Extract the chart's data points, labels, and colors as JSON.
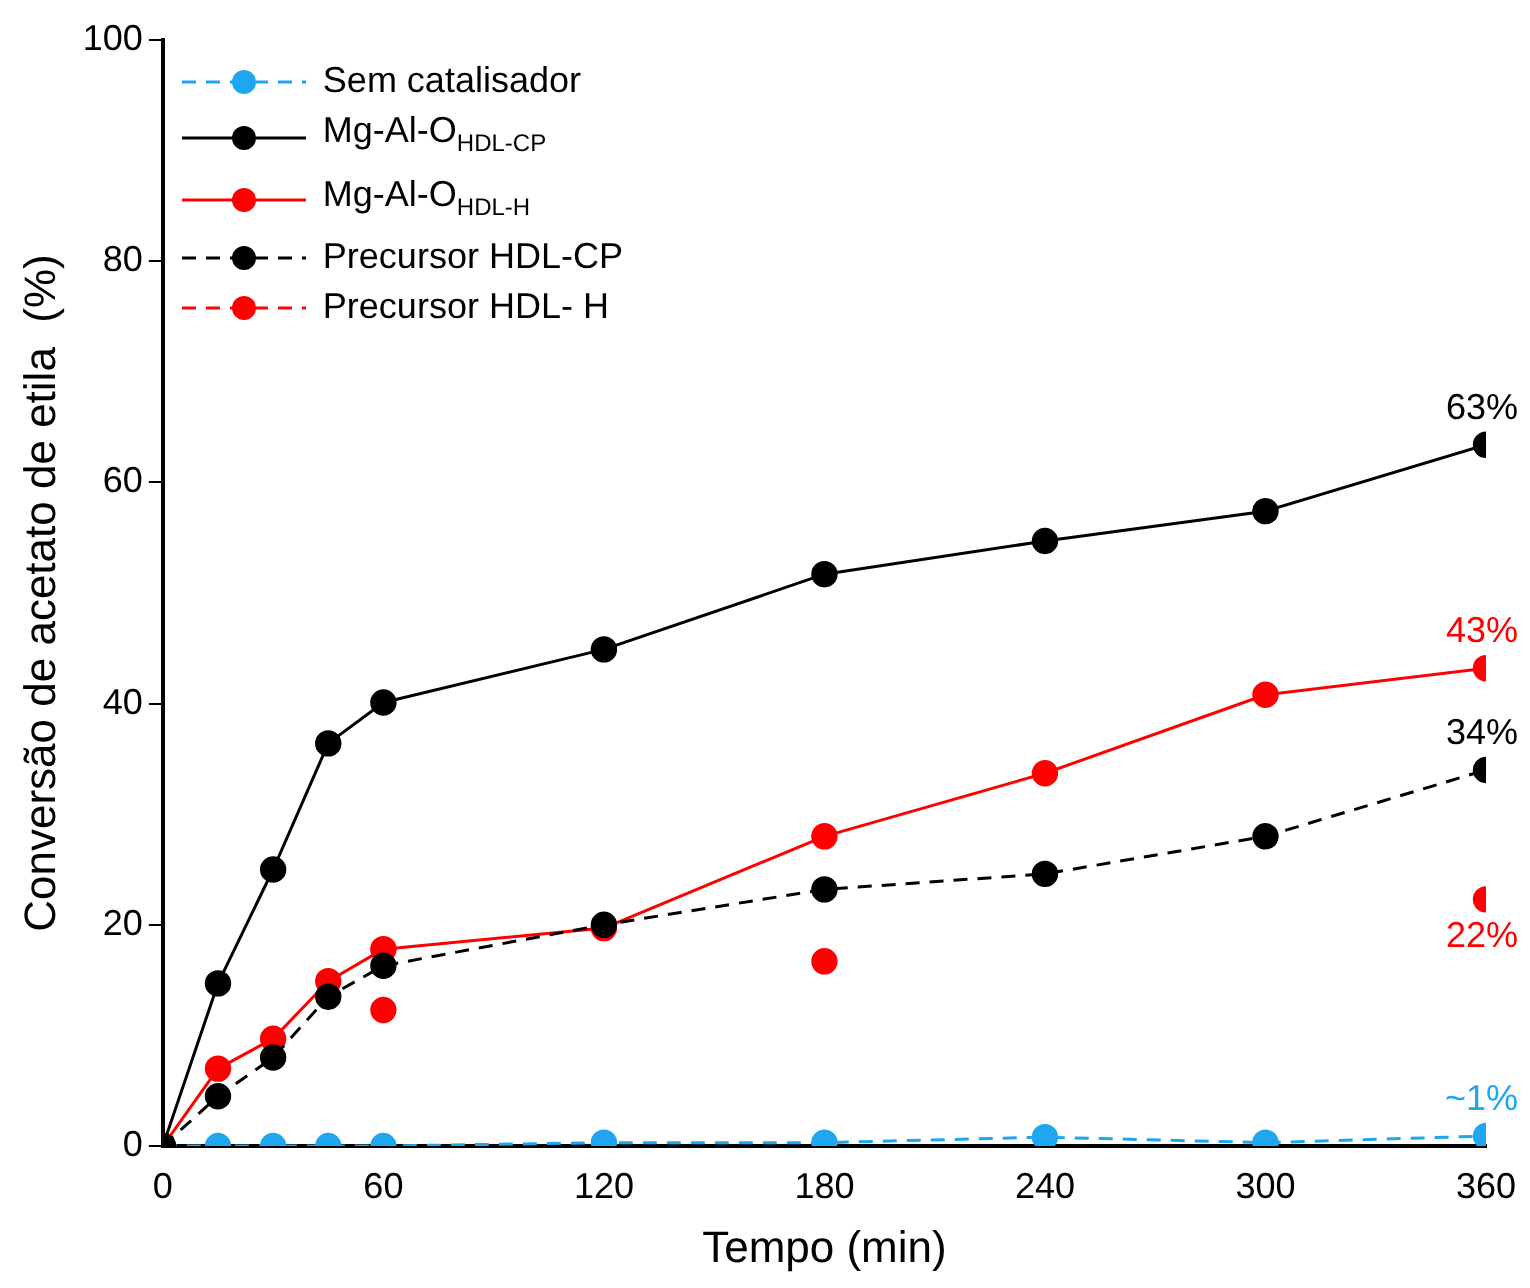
{
  "chart_data": {
    "type": "line",
    "xlabel": "Tempo (min)",
    "ylabel": "Conversão de acetato de etila  (%)",
    "xlim": [
      0,
      360
    ],
    "xticks": [
      0,
      60,
      120,
      180,
      240,
      300,
      360
    ],
    "ylim": [
      0,
      100
    ],
    "yticks": [
      0,
      20,
      40,
      60,
      80,
      100
    ],
    "grid": false,
    "legend": "top left",
    "marker": "circle",
    "series": [
      {
        "name": "Sem catalisador",
        "color": "#1ea7f0",
        "line_style": "dashed",
        "x": [
          0,
          15,
          30,
          45,
          60,
          120,
          180,
          240,
          300,
          360
        ],
        "values": [
          0,
          0,
          0,
          0,
          0,
          0.3,
          0.3,
          0.8,
          0.3,
          0.9
        ],
        "value_labels": [
          null,
          null,
          null,
          null,
          null,
          null,
          null,
          null,
          null,
          "~1%"
        ]
      },
      {
        "name": "Mg-Al-O$_{HDL-CP}$",
        "color": "#000000",
        "line_style": "solid",
        "x": [
          0,
          15,
          30,
          45,
          60,
          120,
          180,
          240,
          300,
          360
        ],
        "values": [
          0,
          14.7,
          25.0,
          36.4,
          40.1,
          44.9,
          51.7,
          54.7,
          57.4,
          63.4
        ],
        "value_labels": [
          null,
          null,
          null,
          null,
          null,
          null,
          null,
          null,
          null,
          "63%"
        ]
      },
      {
        "name": "Mg-Al-O$_{HDL-H}$",
        "color": "#ff0000",
        "line_style": "solid",
        "x": [
          0,
          15,
          30,
          45,
          60,
          120,
          180,
          240,
          300,
          360
        ],
        "values": [
          0,
          7.0,
          9.7,
          14.9,
          17.8,
          19.7,
          28.0,
          33.7,
          40.8,
          43.2
        ],
        "value_labels": [
          null,
          null,
          null,
          null,
          null,
          null,
          null,
          null,
          null,
          "43%"
        ]
      },
      {
        "name": "Precursor HDL-CP",
        "color": "#000000",
        "line_style": "dashed",
        "x": [
          0,
          15,
          30,
          45,
          60,
          120,
          180,
          240,
          300,
          360
        ],
        "values": [
          0,
          4.5,
          8.0,
          13.5,
          16.3,
          20.0,
          23.2,
          24.6,
          28.0,
          34.0
        ],
        "value_labels": [
          null,
          null,
          null,
          null,
          null,
          null,
          null,
          null,
          null,
          "34%"
        ]
      },
      {
        "name": "Precursor HDL- H",
        "type": "scatter",
        "color": "#ff0000",
        "line_style": "dashed",
        "x": [
          60,
          180,
          360
        ],
        "values": [
          12.3,
          16.7,
          22.3
        ],
        "value_labels": [
          null,
          null,
          "22%"
        ]
      }
    ]
  }
}
